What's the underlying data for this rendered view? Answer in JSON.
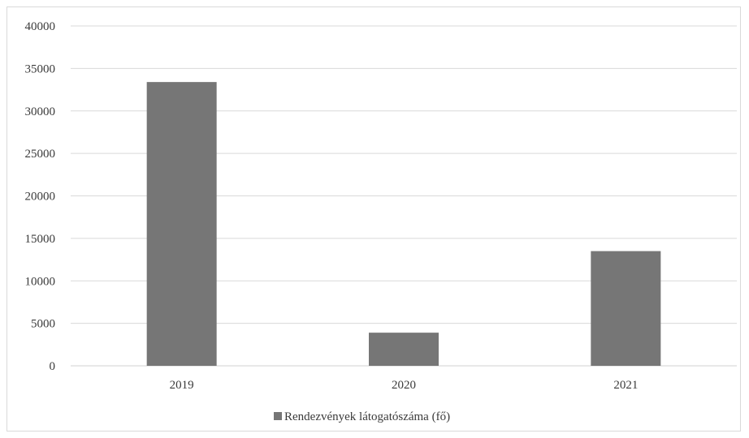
{
  "chart_data": {
    "type": "bar",
    "categories": [
      "2019",
      "2020",
      "2021"
    ],
    "series": [
      {
        "name": "Rendezvények látogatószáma (fő)",
        "values": [
          33400,
          3900,
          13500
        ],
        "color": "#767676"
      }
    ],
    "ylim": [
      0,
      40000
    ],
    "yticks": [
      "0",
      "5000",
      "10000",
      "15000",
      "20000",
      "25000",
      "30000",
      "35000",
      "40000"
    ],
    "grid": true,
    "legend_position": "bottom"
  }
}
